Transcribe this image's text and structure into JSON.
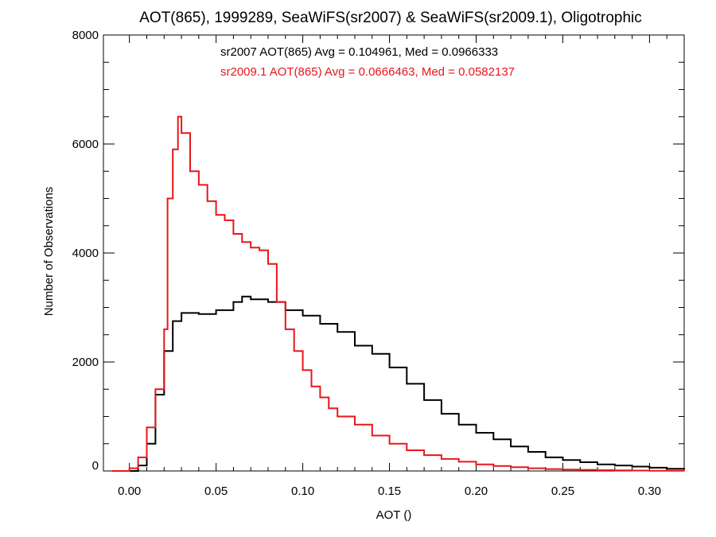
{
  "chart_data": {
    "type": "line",
    "title": "AOT(865), 1999289, SeaWiFS(sr2007) & SeaWiFS(sr2009.1), Oligotrophic",
    "xlabel": "AOT ()",
    "ylabel": "Number of Observations",
    "xlim": [
      -0.015,
      0.32
    ],
    "ylim": [
      0,
      8000
    ],
    "grid": false,
    "x_ticks": [
      0.0,
      0.05,
      0.1,
      0.15,
      0.2,
      0.25,
      0.3
    ],
    "x_tick_labels": [
      "0.00",
      "0.05",
      "0.10",
      "0.15",
      "0.20",
      "0.25",
      "0.30"
    ],
    "y_ticks": [
      0,
      2000,
      4000,
      6000,
      8000
    ],
    "y_tick_labels": [
      "0",
      "2000",
      "4000",
      "6000",
      "8000"
    ],
    "annotations": [
      {
        "text": "sr2007 AOT(865) Avg = 0.104961, Med = 0.0966333",
        "color": "#000000"
      },
      {
        "text": "sr2009.1 AOT(865) Avg = 0.0666463, Med = 0.0582137",
        "color": "#e8161b"
      }
    ],
    "series": [
      {
        "color": "#000000",
        "style": "step",
        "x": [
          0.0,
          0.005,
          0.01,
          0.015,
          0.02,
          0.025,
          0.03,
          0.04,
          0.05,
          0.06,
          0.065,
          0.07,
          0.08,
          0.09,
          0.1,
          0.11,
          0.12,
          0.13,
          0.14,
          0.15,
          0.16,
          0.17,
          0.18,
          0.19,
          0.2,
          0.21,
          0.22,
          0.23,
          0.24,
          0.25,
          0.26,
          0.27,
          0.28,
          0.29,
          0.3,
          0.31,
          0.32
        ],
        "y": [
          0,
          100,
          500,
          1400,
          2200,
          2750,
          2900,
          2880,
          2950,
          3100,
          3200,
          3150,
          3100,
          2950,
          2850,
          2700,
          2550,
          2300,
          2150,
          1900,
          1600,
          1300,
          1050,
          850,
          700,
          580,
          450,
          350,
          250,
          200,
          160,
          120,
          100,
          80,
          60,
          40,
          30
        ]
      },
      {
        "color": "#e8161b",
        "style": "step",
        "x": [
          -0.01,
          0.0,
          0.005,
          0.01,
          0.015,
          0.02,
          0.022,
          0.025,
          0.028,
          0.03,
          0.035,
          0.04,
          0.045,
          0.05,
          0.055,
          0.06,
          0.065,
          0.07,
          0.075,
          0.08,
          0.085,
          0.09,
          0.095,
          0.1,
          0.105,
          0.11,
          0.115,
          0.12,
          0.13,
          0.14,
          0.15,
          0.16,
          0.17,
          0.18,
          0.19,
          0.2,
          0.21,
          0.22,
          0.23,
          0.24,
          0.25,
          0.26,
          0.27,
          0.28,
          0.29,
          0.3,
          0.31,
          0.32
        ],
        "y": [
          0,
          50,
          250,
          800,
          1500,
          2600,
          5000,
          5900,
          6500,
          6200,
          5500,
          5250,
          4950,
          4700,
          4600,
          4350,
          4200,
          4100,
          4050,
          3800,
          3100,
          2600,
          2200,
          1850,
          1550,
          1350,
          1150,
          1000,
          850,
          650,
          500,
          380,
          290,
          220,
          170,
          120,
          90,
          70,
          50,
          35,
          25,
          20,
          15,
          10,
          8,
          5,
          3,
          2
        ]
      }
    ]
  }
}
